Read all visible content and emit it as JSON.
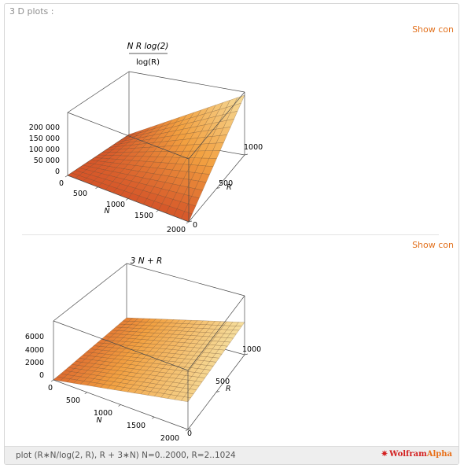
{
  "pod": {
    "title": "3 D plots :",
    "show_label": "Show con"
  },
  "footer": {
    "input_text": "plot (R∗N/log(2, R), R + 3∗N) N=0..2000, R=2..1024",
    "logo_word1": "Wolfram",
    "logo_word2": "Alpha",
    "logo_icon": "wolfram-star-icon"
  },
  "plots": [
    {
      "title_numerator": "N R log(2)",
      "title_denominator": "log(R)",
      "z_ticks": [
        "200 000",
        "150 000",
        "100 000",
        "50 000",
        "0"
      ],
      "n_ticks": [
        "0",
        "500",
        "1000",
        "1500",
        "2000"
      ],
      "r_ticks": [
        "0",
        "500",
        "1000"
      ],
      "n_axis_label": "N",
      "r_axis_label": "R"
    },
    {
      "title": "3 N + R",
      "z_ticks": [
        "6000",
        "4000",
        "2000",
        "0"
      ],
      "n_ticks": [
        "0",
        "500",
        "1000",
        "1500",
        "2000"
      ],
      "r_ticks": [
        "0",
        "500",
        "1000"
      ],
      "n_axis_label": "N",
      "r_axis_label": "R"
    }
  ],
  "colors": {
    "accent": "#e2701c",
    "surface_low": "#c8341f",
    "surface_mid": "#f2a040",
    "surface_high": "#f6e4a6",
    "mesh": "#5a3a20",
    "box": "#4a4a4a"
  }
}
